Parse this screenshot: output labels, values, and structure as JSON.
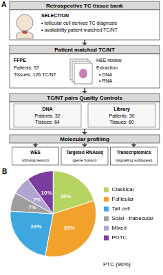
{
  "figure": {
    "panel_a": {
      "label": "A",
      "bank": {
        "title": "Retrospective TC tissue bank",
        "heading": "SELECTION",
        "items": [
          "• follicular cell derived TC diagnosis",
          "• availability patient matched TC/NT"
        ]
      },
      "matched": {
        "title": "Patient matched TC/NT",
        "sample": "FFPE",
        "lines": [
          "Patients: 57",
          "Tissues: 126 TC/NT"
        ],
        "steps": [
          "H&E review",
          "Extraction"
        ],
        "items": [
          "• DNA",
          "• RNA"
        ]
      },
      "qc": {
        "title": "TC/NT pairs Quality Controls",
        "groups": [
          {
            "name": "DNA",
            "lines": [
              "Patients: 32",
              "Tissues: 64"
            ]
          },
          {
            "name": "Library",
            "lines": [
              "Patients: 30",
              "Tissues: 60"
            ]
          }
        ]
      },
      "profiling": {
        "title": "Molecular profiling",
        "methods": [
          {
            "name": "WES",
            "note": "(driving lesion)"
          },
          {
            "name": "Targeted RNAseq",
            "note": "(gene fusion)"
          },
          {
            "name": "Transcriptomics",
            "note": "(signaling subtypes)"
          }
        ]
      }
    }
  },
  "chart_data": {
    "type": "pie",
    "panel_label": "B",
    "categories": [
      "Classical",
      "Follicular",
      "Tall cell",
      "Solid - trabecular",
      "Mixed",
      "PDTC"
    ],
    "values": [
      20,
      33,
      23,
      7,
      7,
      10
    ],
    "value_labels": [
      "20%",
      "33%",
      "23%",
      "7%",
      "7%",
      "10%"
    ],
    "colors": [
      "#b5d461",
      "#f2a22c",
      "#3ea7e0",
      "#9e9e9e",
      "#b3a3cf",
      "#7a3c9e"
    ],
    "data_labels": true,
    "legend": "right",
    "annotation": "PTC (90%)"
  }
}
